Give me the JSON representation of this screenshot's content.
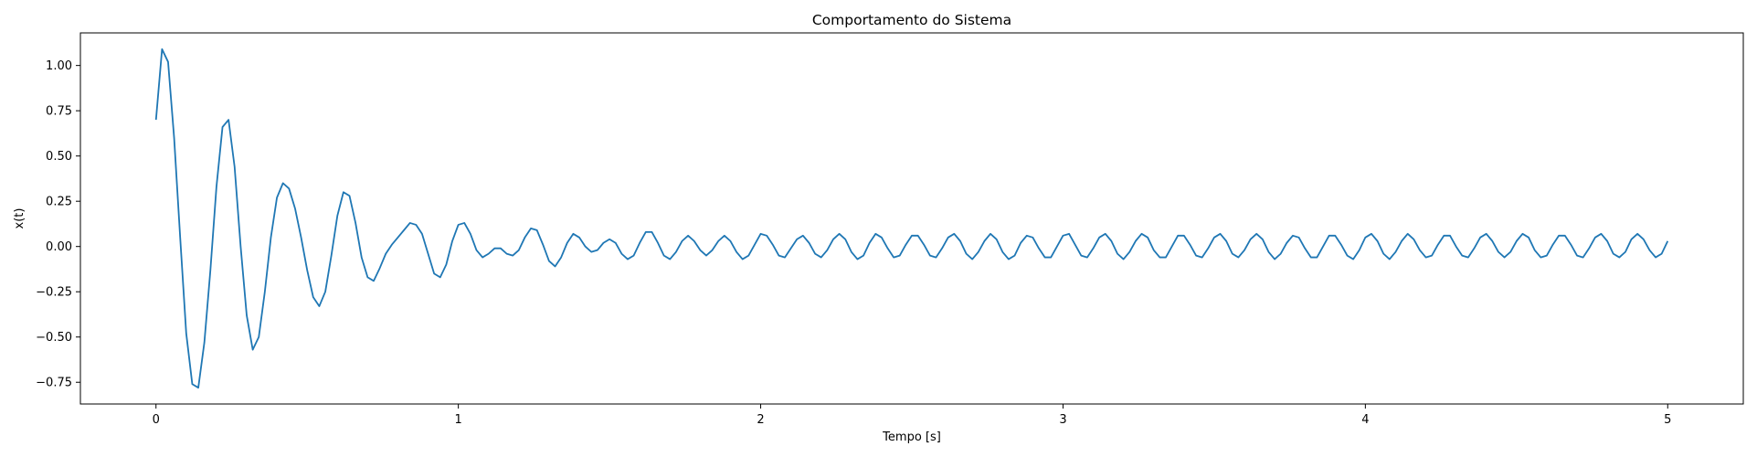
{
  "chart_data": {
    "type": "line",
    "title": "Comportamento do Sistema",
    "xlabel": "Tempo [s]",
    "ylabel": "x(t)",
    "xlim": [
      -0.25,
      5.25
    ],
    "ylim": [
      -0.87,
      1.18
    ],
    "grid": false,
    "xticks": [
      0,
      1,
      2,
      3,
      4,
      5
    ],
    "xtick_labels": [
      "0",
      "1",
      "2",
      "3",
      "4",
      "5"
    ],
    "yticks": [
      1.0,
      0.75,
      0.5,
      0.25,
      0.0,
      -0.25,
      -0.5,
      -0.75
    ],
    "ytick_labels": [
      "1.00",
      "0.75",
      "0.50",
      "0.25",
      "0.00",
      "−0.25",
      "−0.50",
      "−0.75"
    ],
    "series": [
      {
        "color": "#1f77b4",
        "points": [
          [
            0.0,
            0.7
          ],
          [
            0.02,
            1.09
          ],
          [
            0.04,
            1.02
          ],
          [
            0.06,
            0.6
          ],
          [
            0.08,
            0.05
          ],
          [
            0.1,
            -0.48
          ],
          [
            0.12,
            -0.76
          ],
          [
            0.14,
            -0.78
          ],
          [
            0.16,
            -0.53
          ],
          [
            0.18,
            -0.13
          ],
          [
            0.2,
            0.33
          ],
          [
            0.22,
            0.66
          ],
          [
            0.24,
            0.7
          ],
          [
            0.26,
            0.44
          ],
          [
            0.28,
            0.0
          ],
          [
            0.3,
            -0.38
          ],
          [
            0.32,
            -0.57
          ],
          [
            0.34,
            -0.5
          ],
          [
            0.36,
            -0.25
          ],
          [
            0.38,
            0.05
          ],
          [
            0.4,
            0.27
          ],
          [
            0.42,
            0.35
          ],
          [
            0.44,
            0.32
          ],
          [
            0.46,
            0.21
          ],
          [
            0.48,
            0.05
          ],
          [
            0.5,
            -0.13
          ],
          [
            0.52,
            -0.28
          ],
          [
            0.54,
            -0.33
          ],
          [
            0.56,
            -0.25
          ],
          [
            0.58,
            -0.05
          ],
          [
            0.6,
            0.17
          ],
          [
            0.62,
            0.3
          ],
          [
            0.64,
            0.28
          ],
          [
            0.66,
            0.13
          ],
          [
            0.68,
            -0.06
          ],
          [
            0.7,
            -0.17
          ],
          [
            0.72,
            -0.19
          ],
          [
            0.74,
            -0.12
          ],
          [
            0.76,
            -0.04
          ],
          [
            0.78,
            0.01
          ],
          [
            0.8,
            0.05
          ],
          [
            0.82,
            0.09
          ],
          [
            0.84,
            0.13
          ],
          [
            0.86,
            0.12
          ],
          [
            0.88,
            0.07
          ],
          [
            0.9,
            -0.04
          ],
          [
            0.92,
            -0.15
          ],
          [
            0.94,
            -0.17
          ],
          [
            0.96,
            -0.1
          ],
          [
            0.98,
            0.03
          ],
          [
            1.0,
            0.12
          ],
          [
            1.02,
            0.13
          ],
          [
            1.04,
            0.07
          ],
          [
            1.06,
            -0.02
          ],
          [
            1.08,
            -0.06
          ],
          [
            1.1,
            -0.04
          ],
          [
            1.12,
            -0.01
          ],
          [
            1.14,
            -0.01
          ],
          [
            1.16,
            -0.04
          ],
          [
            1.18,
            -0.05
          ],
          [
            1.2,
            -0.02
          ],
          [
            1.22,
            0.05
          ],
          [
            1.24,
            0.1
          ],
          [
            1.26,
            0.09
          ],
          [
            1.28,
            0.01
          ],
          [
            1.3,
            -0.08
          ],
          [
            1.32,
            -0.11
          ],
          [
            1.34,
            -0.06
          ],
          [
            1.36,
            0.02
          ],
          [
            1.38,
            0.07
          ],
          [
            1.4,
            0.05
          ],
          [
            1.42,
            0.0
          ],
          [
            1.44,
            -0.03
          ],
          [
            1.46,
            -0.02
          ],
          [
            1.48,
            0.02
          ],
          [
            1.5,
            0.04
          ],
          [
            1.52,
            0.02
          ],
          [
            1.54,
            -0.04
          ],
          [
            1.56,
            -0.07
          ],
          [
            1.58,
            -0.05
          ],
          [
            1.6,
            0.02
          ],
          [
            1.62,
            0.08
          ],
          [
            1.64,
            0.08
          ],
          [
            1.66,
            0.02
          ],
          [
            1.68,
            -0.05
          ],
          [
            1.7,
            -0.07
          ],
          [
            1.72,
            -0.03
          ],
          [
            1.74,
            0.03
          ],
          [
            1.76,
            0.06
          ],
          [
            1.78,
            0.03
          ],
          [
            1.8,
            -0.02
          ],
          [
            1.82,
            -0.05
          ],
          [
            1.84,
            -0.02
          ],
          [
            1.86,
            0.03
          ],
          [
            1.88,
            0.06
          ],
          [
            1.9,
            0.03
          ],
          [
            1.92,
            -0.03
          ],
          [
            1.94,
            -0.07
          ],
          [
            1.96,
            -0.05
          ],
          [
            1.98,
            0.01
          ],
          [
            2.0,
            0.07
          ],
          [
            2.02,
            0.06
          ],
          [
            2.04,
            0.01
          ],
          [
            2.06,
            -0.05
          ],
          [
            2.08,
            -0.06
          ],
          [
            2.1,
            -0.01
          ],
          [
            2.12,
            0.04
          ],
          [
            2.14,
            0.06
          ],
          [
            2.16,
            0.02
          ],
          [
            2.18,
            -0.04
          ],
          [
            2.2,
            -0.06
          ],
          [
            2.22,
            -0.02
          ],
          [
            2.24,
            0.04
          ],
          [
            2.26,
            0.07
          ],
          [
            2.28,
            0.04
          ],
          [
            2.3,
            -0.03
          ],
          [
            2.32,
            -0.07
          ],
          [
            2.34,
            -0.05
          ],
          [
            2.36,
            0.02
          ],
          [
            2.38,
            0.07
          ],
          [
            2.4,
            0.05
          ],
          [
            2.42,
            -0.01
          ],
          [
            2.44,
            -0.06
          ],
          [
            2.46,
            -0.05
          ],
          [
            2.48,
            0.01
          ],
          [
            2.5,
            0.06
          ],
          [
            2.52,
            0.06
          ],
          [
            2.54,
            0.01
          ],
          [
            2.56,
            -0.05
          ],
          [
            2.58,
            -0.06
          ],
          [
            2.6,
            -0.01
          ],
          [
            2.62,
            0.05
          ],
          [
            2.64,
            0.07
          ],
          [
            2.66,
            0.03
          ],
          [
            2.68,
            -0.04
          ],
          [
            2.7,
            -0.07
          ],
          [
            2.72,
            -0.03
          ],
          [
            2.74,
            0.03
          ],
          [
            2.76,
            0.07
          ],
          [
            2.78,
            0.04
          ],
          [
            2.8,
            -0.03
          ],
          [
            2.82,
            -0.07
          ],
          [
            2.84,
            -0.05
          ],
          [
            2.86,
            0.02
          ],
          [
            2.88,
            0.06
          ],
          [
            2.9,
            0.05
          ],
          [
            2.92,
            -0.01
          ],
          [
            2.94,
            -0.06
          ],
          [
            2.96,
            -0.06
          ],
          [
            2.98,
            0.0
          ],
          [
            3.0,
            0.06
          ],
          [
            3.02,
            0.07
          ],
          [
            3.04,
            0.01
          ],
          [
            3.06,
            -0.05
          ],
          [
            3.08,
            -0.06
          ],
          [
            3.1,
            -0.01
          ],
          [
            3.12,
            0.05
          ],
          [
            3.14,
            0.07
          ],
          [
            3.16,
            0.03
          ],
          [
            3.18,
            -0.04
          ],
          [
            3.2,
            -0.07
          ],
          [
            3.22,
            -0.03
          ],
          [
            3.24,
            0.03
          ],
          [
            3.26,
            0.07
          ],
          [
            3.28,
            0.05
          ],
          [
            3.3,
            -0.02
          ],
          [
            3.32,
            -0.06
          ],
          [
            3.34,
            -0.06
          ],
          [
            3.36,
            0.0
          ],
          [
            3.38,
            0.06
          ],
          [
            3.4,
            0.06
          ],
          [
            3.42,
            0.01
          ],
          [
            3.44,
            -0.05
          ],
          [
            3.46,
            -0.06
          ],
          [
            3.48,
            -0.01
          ],
          [
            3.5,
            0.05
          ],
          [
            3.52,
            0.07
          ],
          [
            3.54,
            0.03
          ],
          [
            3.56,
            -0.04
          ],
          [
            3.58,
            -0.06
          ],
          [
            3.6,
            -0.02
          ],
          [
            3.62,
            0.04
          ],
          [
            3.64,
            0.07
          ],
          [
            3.66,
            0.04
          ],
          [
            3.68,
            -0.03
          ],
          [
            3.7,
            -0.07
          ],
          [
            3.72,
            -0.04
          ],
          [
            3.74,
            0.02
          ],
          [
            3.76,
            0.06
          ],
          [
            3.78,
            0.05
          ],
          [
            3.8,
            -0.01
          ],
          [
            3.82,
            -0.06
          ],
          [
            3.84,
            -0.06
          ],
          [
            3.86,
            0.0
          ],
          [
            3.88,
            0.06
          ],
          [
            3.9,
            0.06
          ],
          [
            3.92,
            0.01
          ],
          [
            3.94,
            -0.05
          ],
          [
            3.96,
            -0.07
          ],
          [
            3.98,
            -0.02
          ],
          [
            4.0,
            0.05
          ],
          [
            4.02,
            0.07
          ],
          [
            4.04,
            0.03
          ],
          [
            4.06,
            -0.04
          ],
          [
            4.08,
            -0.07
          ],
          [
            4.1,
            -0.03
          ],
          [
            4.12,
            0.03
          ],
          [
            4.14,
            0.07
          ],
          [
            4.16,
            0.04
          ],
          [
            4.18,
            -0.02
          ],
          [
            4.2,
            -0.06
          ],
          [
            4.22,
            -0.05
          ],
          [
            4.24,
            0.01
          ],
          [
            4.26,
            0.06
          ],
          [
            4.28,
            0.06
          ],
          [
            4.3,
            0.0
          ],
          [
            4.32,
            -0.05
          ],
          [
            4.34,
            -0.06
          ],
          [
            4.36,
            -0.01
          ],
          [
            4.38,
            0.05
          ],
          [
            4.4,
            0.07
          ],
          [
            4.42,
            0.03
          ],
          [
            4.44,
            -0.03
          ],
          [
            4.46,
            -0.06
          ],
          [
            4.48,
            -0.03
          ],
          [
            4.5,
            0.03
          ],
          [
            4.52,
            0.07
          ],
          [
            4.54,
            0.05
          ],
          [
            4.56,
            -0.02
          ],
          [
            4.58,
            -0.06
          ],
          [
            4.6,
            -0.05
          ],
          [
            4.62,
            0.01
          ],
          [
            4.64,
            0.06
          ],
          [
            4.66,
            0.06
          ],
          [
            4.68,
            0.01
          ],
          [
            4.7,
            -0.05
          ],
          [
            4.72,
            -0.06
          ],
          [
            4.74,
            -0.01
          ],
          [
            4.76,
            0.05
          ],
          [
            4.78,
            0.07
          ],
          [
            4.8,
            0.03
          ],
          [
            4.82,
            -0.04
          ],
          [
            4.84,
            -0.06
          ],
          [
            4.86,
            -0.03
          ],
          [
            4.88,
            0.04
          ],
          [
            4.9,
            0.07
          ],
          [
            4.92,
            0.04
          ],
          [
            4.94,
            -0.02
          ],
          [
            4.96,
            -0.06
          ],
          [
            4.98,
            -0.04
          ],
          [
            5.0,
            0.03
          ]
        ]
      }
    ]
  }
}
